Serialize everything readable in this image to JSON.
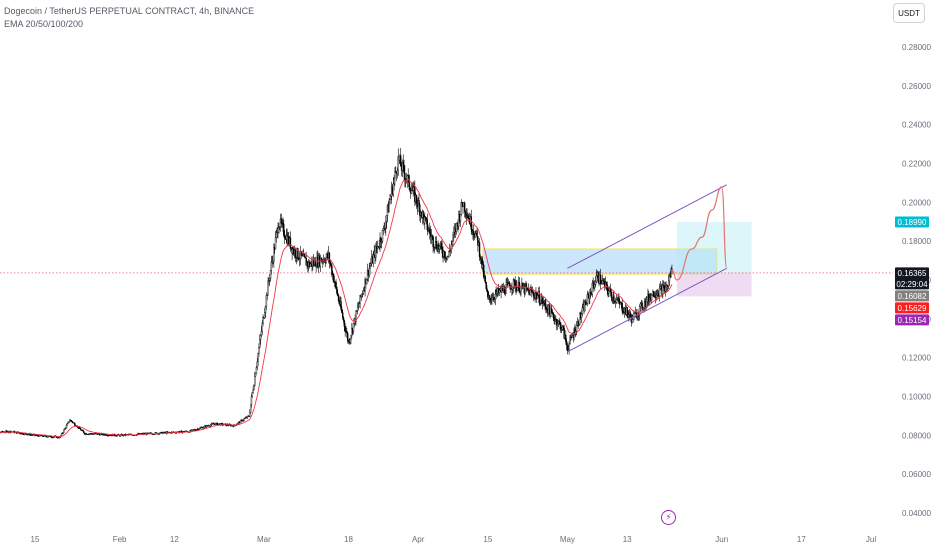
{
  "header": {
    "title": "Dogecoin / TetherUS PERPETUAL CONTRACT, 4h, BINANCE",
    "indicator": "EMA 20/50/100/200"
  },
  "currency_button": "USDT",
  "event_icon": "lightning-icon",
  "colors": {
    "candle": "#000000",
    "ema": "#f23645",
    "channel": "#7e57c2",
    "price_line": "#f23645",
    "zone_blue": "#bbdefb",
    "zone_yellow_border": "#f5e663",
    "target_zone": "#b2ebf2",
    "stop_zone": "#e1bee7",
    "projection": "#e57373"
  },
  "chart_data": {
    "type": "candlestick",
    "title": "Dogecoin / TetherUS PERPETUAL CONTRACT, 4h, BINANCE",
    "interval": "4h",
    "indicators": [
      "EMA 20/50/100/200"
    ],
    "x_tick_labels": [
      "15",
      "Feb",
      "12",
      "Mar",
      "18",
      "Apr",
      "15",
      "May",
      "13",
      "Jun",
      "17",
      "Jul"
    ],
    "y_tick_labels": [
      "0.28000",
      "0.26000",
      "0.24000",
      "0.22000",
      "0.20000",
      "0.18000",
      "0.16000",
      "0.14000",
      "0.12000",
      "0.10000",
      "0.08000",
      "0.06000",
      "0.04000"
    ],
    "ylim": [
      0.032,
      0.292
    ],
    "grid": false,
    "price_path": [
      {
        "x": "2024-01-05",
        "y": 0.081
      },
      {
        "x": "2024-01-10",
        "y": 0.082
      },
      {
        "x": "2024-01-15",
        "y": 0.08
      },
      {
        "x": "2024-01-20",
        "y": 0.079
      },
      {
        "x": "2024-01-22",
        "y": 0.088
      },
      {
        "x": "2024-01-25",
        "y": 0.081
      },
      {
        "x": "2024-02-01",
        "y": 0.08
      },
      {
        "x": "2024-02-08",
        "y": 0.081
      },
      {
        "x": "2024-02-15",
        "y": 0.082
      },
      {
        "x": "2024-02-20",
        "y": 0.086
      },
      {
        "x": "2024-02-24",
        "y": 0.085
      },
      {
        "x": "2024-02-27",
        "y": 0.09
      },
      {
        "x": "2024-02-29",
        "y": 0.125
      },
      {
        "x": "2024-03-02",
        "y": 0.16
      },
      {
        "x": "2024-03-04",
        "y": 0.19
      },
      {
        "x": "2024-03-07",
        "y": 0.175
      },
      {
        "x": "2024-03-10",
        "y": 0.168
      },
      {
        "x": "2024-03-14",
        "y": 0.172
      },
      {
        "x": "2024-03-18",
        "y": 0.128
      },
      {
        "x": "2024-03-22",
        "y": 0.165
      },
      {
        "x": "2024-03-25",
        "y": 0.185
      },
      {
        "x": "2024-03-28",
        "y": 0.222
      },
      {
        "x": "2024-03-31",
        "y": 0.205
      },
      {
        "x": "2024-04-04",
        "y": 0.18
      },
      {
        "x": "2024-04-07",
        "y": 0.172
      },
      {
        "x": "2024-04-10",
        "y": 0.2
      },
      {
        "x": "2024-04-13",
        "y": 0.18
      },
      {
        "x": "2024-04-15",
        "y": 0.15
      },
      {
        "x": "2024-04-20",
        "y": 0.158
      },
      {
        "x": "2024-04-25",
        "y": 0.152
      },
      {
        "x": "2024-04-30",
        "y": 0.135
      },
      {
        "x": "2024-05-01",
        "y": 0.125
      },
      {
        "x": "2024-05-05",
        "y": 0.15
      },
      {
        "x": "2024-05-07",
        "y": 0.162
      },
      {
        "x": "2024-05-10",
        "y": 0.152
      },
      {
        "x": "2024-05-14",
        "y": 0.14
      },
      {
        "x": "2024-05-18",
        "y": 0.153
      },
      {
        "x": "2024-05-21",
        "y": 0.156
      },
      {
        "x": "2024-05-22",
        "y": 0.166
      }
    ],
    "price_labels": [
      {
        "label": "0.18990",
        "value": 0.1899,
        "color": "#00bcd4"
      },
      {
        "label": "0.16365",
        "value": 0.16365,
        "color": "#131722",
        "countdown": "02:29:04"
      },
      {
        "label": "0.16082",
        "value": 0.16082,
        "color": "#808080"
      },
      {
        "label": "0.15629",
        "value": 0.15629,
        "color": "#ff1e1e"
      },
      {
        "label": "0.15154",
        "value": 0.15154,
        "color": "#9c27b0"
      }
    ],
    "last_price": 0.16365,
    "channel": {
      "upper": [
        {
          "x": "2024-05-01",
          "y": 0.166
        },
        {
          "x": "2024-06-02",
          "y": 0.209
        }
      ],
      "lower": [
        {
          "x": "2024-05-01",
          "y": 0.123
        },
        {
          "x": "2024-06-02",
          "y": 0.166
        }
      ]
    },
    "zones": [
      {
        "name": "supply",
        "x": [
          "2024-04-14",
          "2024-05-31"
        ],
        "y": [
          0.163,
          0.176
        ]
      },
      {
        "name": "target",
        "x": [
          "2024-05-23",
          "2024-06-07"
        ],
        "y": [
          0.16365,
          0.1899
        ]
      },
      {
        "name": "stop",
        "x": [
          "2024-05-23",
          "2024-06-07"
        ],
        "y": [
          0.15154,
          0.16365
        ]
      }
    ],
    "projection": [
      {
        "x": "2024-05-22",
        "y": 0.165
      },
      {
        "x": "2024-05-23",
        "y": 0.16
      },
      {
        "x": "2024-05-26",
        "y": 0.176
      },
      {
        "x": "2024-05-28",
        "y": 0.182
      },
      {
        "x": "2024-05-30",
        "y": 0.196
      },
      {
        "x": "2024-06-01",
        "y": 0.208
      },
      {
        "x": "2024-06-02",
        "y": 0.166
      }
    ]
  }
}
